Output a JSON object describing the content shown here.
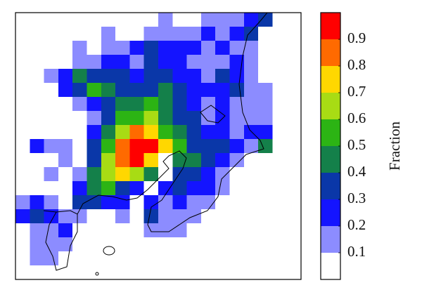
{
  "chart_data": {
    "type": "raster-map",
    "colorbar": {
      "label": "Fraction",
      "lim": [
        0,
        1
      ],
      "ticks": [
        0.1,
        0.2,
        0.3,
        0.4,
        0.5,
        0.6,
        0.7,
        0.8,
        0.9
      ],
      "colors": [
        "#ffffff",
        "#8c8cff",
        "#1414ff",
        "#0a37a8",
        "#14804a",
        "#2cb414",
        "#a8dc14",
        "#ffd700",
        "#ff6a00",
        "#ff0000"
      ]
    },
    "grid": [
      [
        0,
        0,
        0,
        0,
        0,
        0,
        0,
        0,
        0,
        0,
        0.1,
        0,
        0,
        0.1,
        0.15,
        0.1,
        0.2,
        0.3,
        0,
        0
      ],
      [
        0,
        0,
        0,
        0,
        0,
        0,
        0.1,
        0,
        0,
        0.1,
        0.15,
        0.1,
        0.15,
        0.2,
        0.15,
        0.2,
        0.3,
        0,
        0,
        0
      ],
      [
        0,
        0,
        0,
        0,
        0.1,
        0,
        0.1,
        0.15,
        0.2,
        0.3,
        0.2,
        0.25,
        0.2,
        0.15,
        0.2,
        0.1,
        0.15,
        0,
        0,
        0
      ],
      [
        0,
        0,
        0,
        0,
        0.15,
        0.1,
        0.2,
        0.25,
        0.15,
        0.3,
        0.25,
        0.2,
        0.15,
        0.1,
        0.15,
        0.2,
        0.1,
        0,
        0,
        0
      ],
      [
        0,
        0,
        0.1,
        0.25,
        0.45,
        0.35,
        0.3,
        0.35,
        0.25,
        0.3,
        0.35,
        0.25,
        0.2,
        0.15,
        0.3,
        0.25,
        0.15,
        0,
        0,
        0
      ],
      [
        0,
        0,
        0,
        0.2,
        0.35,
        0.55,
        0.4,
        0.35,
        0.3,
        0.35,
        0.45,
        0.3,
        0.25,
        0.2,
        0.25,
        0.3,
        0.15,
        0.1,
        0,
        0
      ],
      [
        0,
        0,
        0,
        0,
        0.1,
        0.25,
        0.3,
        0.4,
        0.45,
        0.5,
        0.4,
        0.3,
        0.25,
        0.1,
        0.2,
        0.15,
        0.1,
        0.1,
        0,
        0
      ],
      [
        0,
        0,
        0,
        0,
        0,
        0.1,
        0.35,
        0.5,
        0.55,
        0.6,
        0.45,
        0.35,
        0.3,
        0.15,
        0.2,
        0.1,
        0.1,
        0.1,
        0,
        0
      ],
      [
        0,
        0,
        0,
        0,
        0,
        0.2,
        0.45,
        0.65,
        0.85,
        0.75,
        0.55,
        0.4,
        0.3,
        0.2,
        0.25,
        0.15,
        0.2,
        0.25,
        0,
        0
      ],
      [
        0,
        0.2,
        0.15,
        0.1,
        0,
        0.3,
        0.55,
        0.8,
        0.95,
        0.9,
        0.7,
        0.5,
        0.35,
        0.3,
        0.3,
        0.2,
        0.15,
        0.4,
        0,
        0
      ],
      [
        0,
        0,
        0,
        0.1,
        0,
        0.35,
        0.6,
        0.85,
        0.95,
        0.7,
        0,
        0.45,
        0.4,
        0.3,
        0.2,
        0.1,
        0,
        0,
        0,
        0
      ],
      [
        0,
        0,
        0.1,
        0,
        0.1,
        0.4,
        0.65,
        0.7,
        0.6,
        0.45,
        0,
        0.3,
        0.35,
        0.25,
        0.1,
        0,
        0,
        0,
        0,
        0
      ],
      [
        0,
        0,
        0,
        0,
        0.2,
        0.45,
        0.5,
        0.35,
        0.2,
        0,
        0.2,
        0.3,
        0.25,
        0.2,
        0.1,
        0,
        0,
        0,
        0,
        0
      ],
      [
        0.15,
        0.2,
        0.1,
        0,
        0.3,
        0.35,
        0.25,
        0.2,
        0,
        0.2,
        0.15,
        0.2,
        0.15,
        0.1,
        0,
        0,
        0,
        0,
        0,
        0
      ],
      [
        0.2,
        0.35,
        0.2,
        0.1,
        0.1,
        0,
        0,
        0.15,
        0,
        0.3,
        0.1,
        0.15,
        0.1,
        0,
        0,
        0,
        0,
        0,
        0,
        0
      ],
      [
        0,
        0.15,
        0.1,
        0.2,
        0,
        0,
        0,
        0,
        0,
        0.1,
        0.15,
        0.1,
        0,
        0,
        0,
        0,
        0,
        0,
        0,
        0
      ],
      [
        0,
        0.1,
        0.15,
        0.1,
        0,
        0,
        0,
        0,
        0,
        0,
        0,
        0,
        0,
        0,
        0,
        0,
        0,
        0,
        0,
        0
      ],
      [
        0,
        0.1,
        0.1,
        0,
        0,
        0,
        0,
        0,
        0,
        0,
        0,
        0,
        0,
        0,
        0,
        0,
        0,
        0,
        0,
        0
      ],
      [
        0,
        0,
        0,
        0,
        0,
        0,
        0,
        0,
        0,
        0,
        0,
        0,
        0,
        0,
        0,
        0,
        0,
        0,
        0,
        0
      ]
    ]
  }
}
